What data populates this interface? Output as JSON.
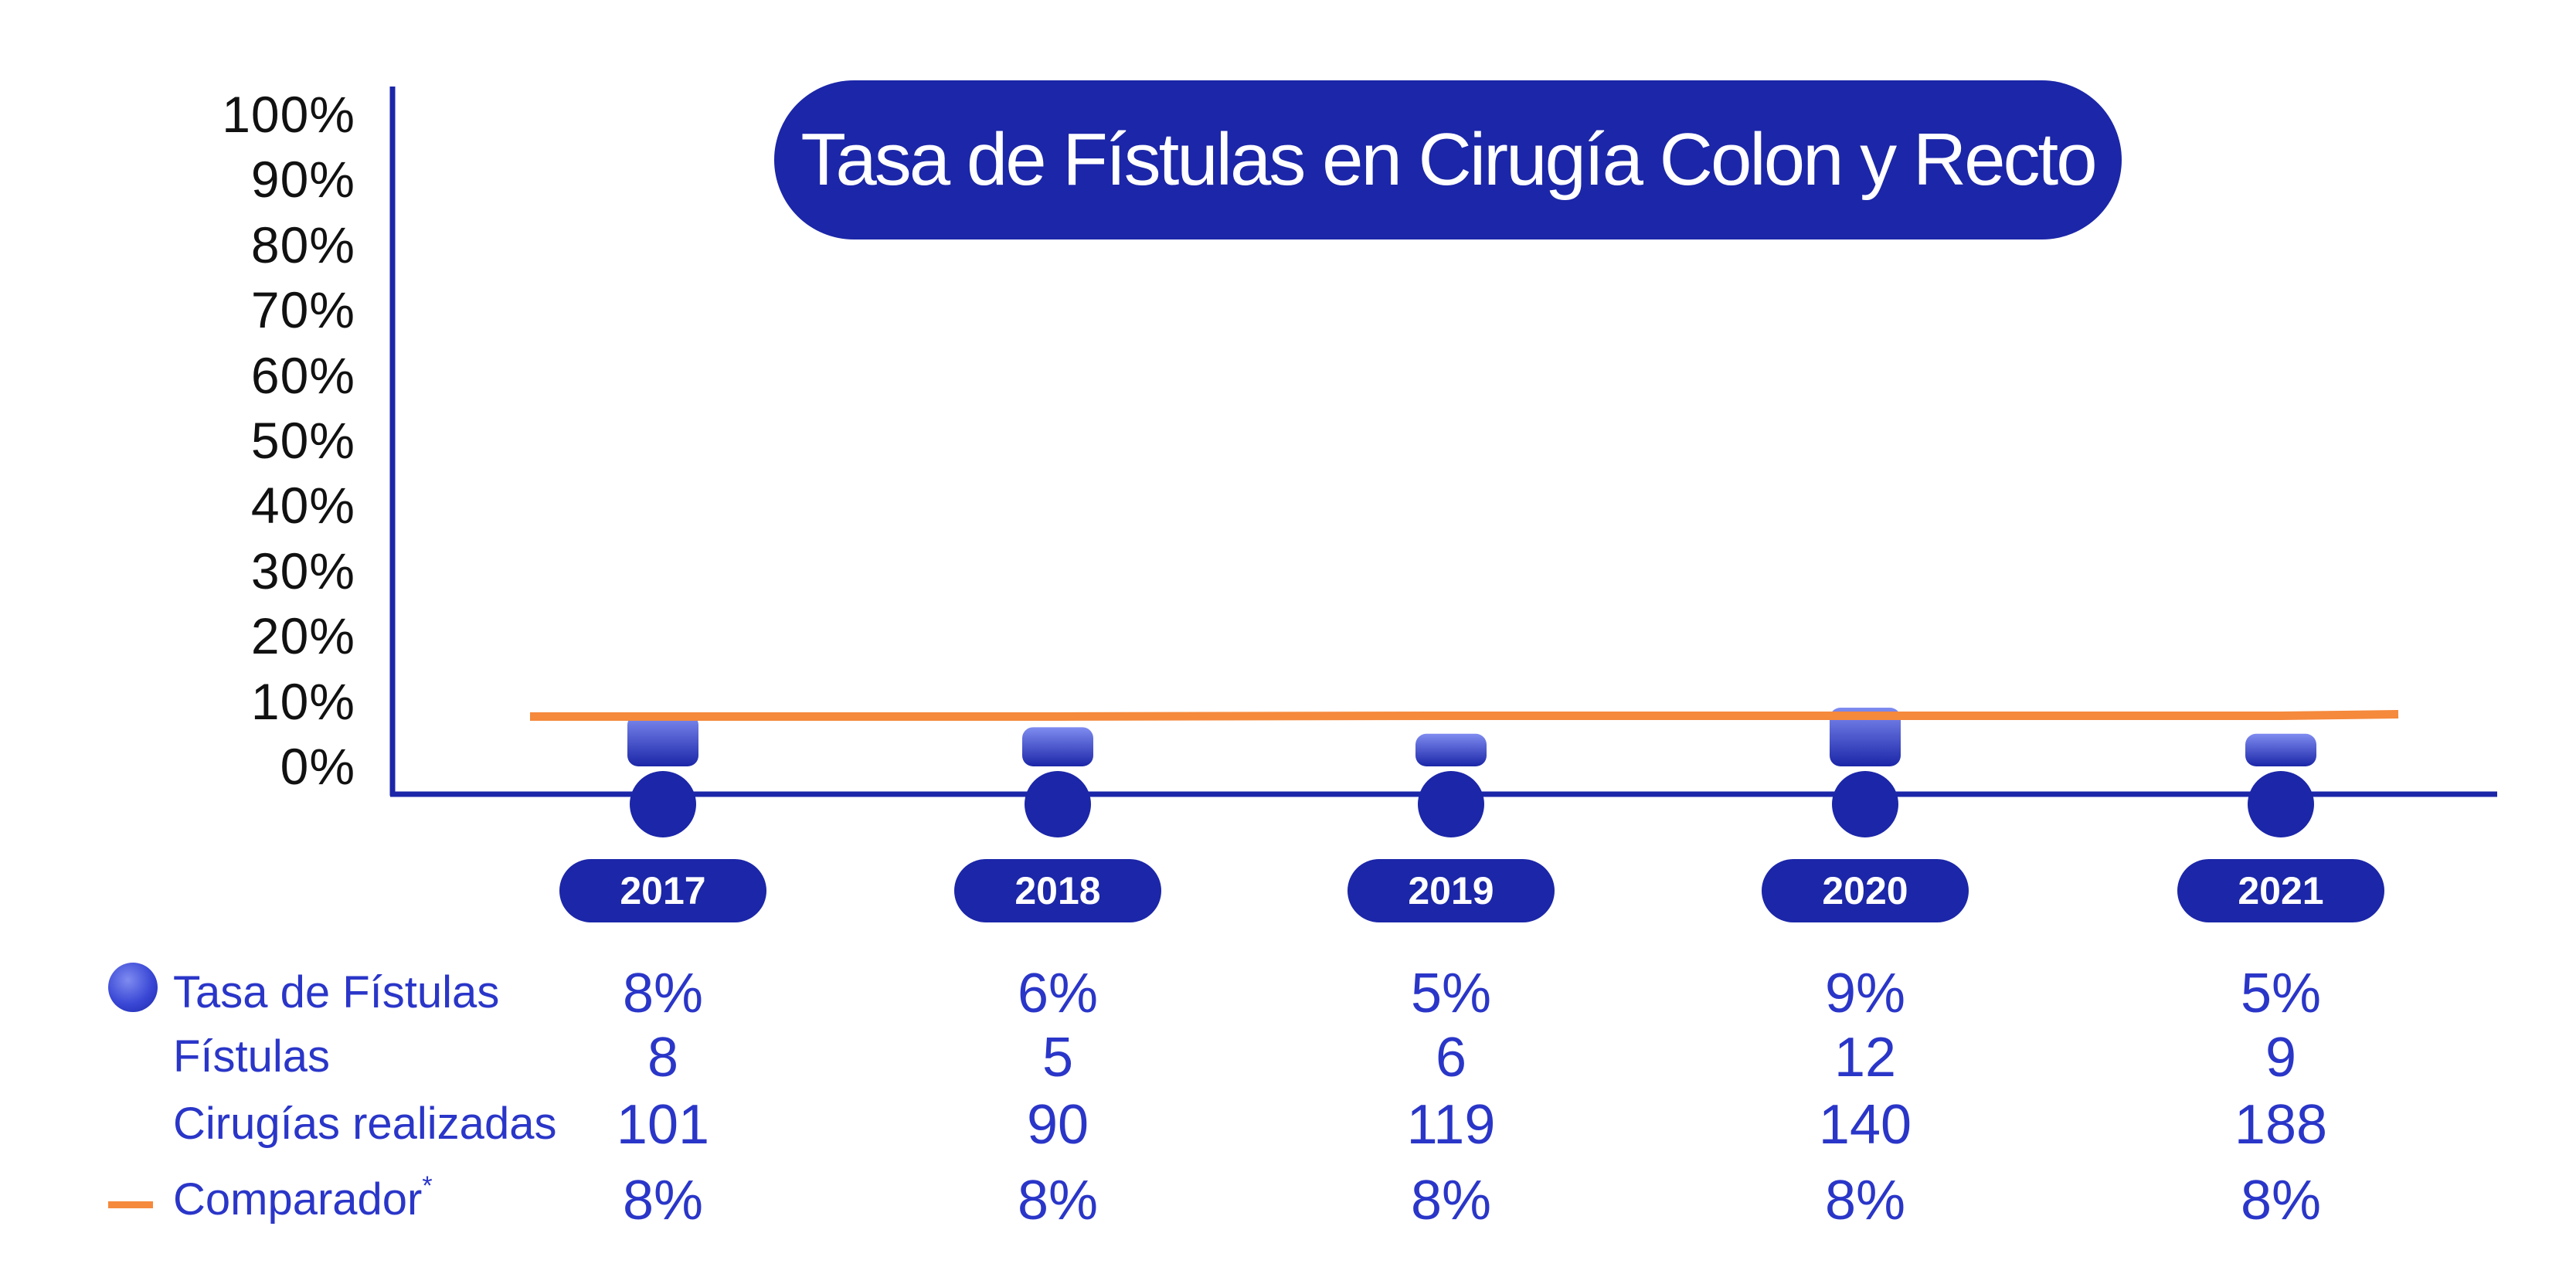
{
  "chart_data": {
    "type": "bar",
    "title": "Tasa de Fístulas en Cirugía Colon y Recto",
    "categories": [
      "2017",
      "2018",
      "2019",
      "2020",
      "2021"
    ],
    "ylim": [
      0,
      100
    ],
    "y_ticks": [
      "0%",
      "10%",
      "20%",
      "30%",
      "40%",
      "50%",
      "60%",
      "70%",
      "80%",
      "90%",
      "100%"
    ],
    "grid": false,
    "series": [
      {
        "name": "Tasa de Fístulas",
        "type": "bar",
        "values": [
          8,
          6,
          5,
          9,
          5
        ]
      },
      {
        "name": "Comparador",
        "type": "line",
        "values": [
          8,
          8,
          8,
          8,
          8
        ]
      }
    ],
    "colors": {
      "bar": "#3a48d6",
      "axis": "#1b26a8",
      "comparator": "#f5893c",
      "accent": "#1b26a8"
    },
    "table": {
      "rows": [
        {
          "label": "Tasa de Fístulas",
          "marker": "dot",
          "values": [
            "8%",
            "6%",
            "5%",
            "9%",
            "5%"
          ]
        },
        {
          "label": "Fístulas",
          "marker": "",
          "values": [
            "8",
            "5",
            "6",
            "12",
            "9"
          ]
        },
        {
          "label": "Cirugías realizadas",
          "marker": "",
          "values": [
            "101",
            "90",
            "119",
            "140",
            "188"
          ]
        },
        {
          "label": "Comparador",
          "marker": "line",
          "label_suffix": "*",
          "values": [
            "8%",
            "8%",
            "8%",
            "8%",
            "8%"
          ]
        }
      ]
    }
  }
}
